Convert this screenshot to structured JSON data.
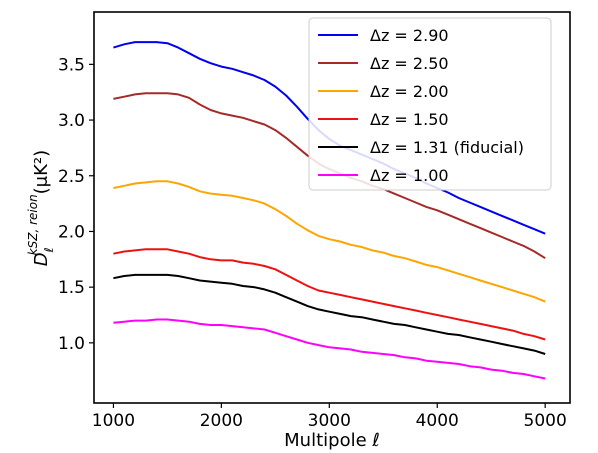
{
  "chart_data": {
    "type": "line",
    "title": "",
    "xlabel": "Multipole ℓ",
    "ylabel_main": "D",
    "ylabel_sub": "ℓ",
    "ylabel_sup": "kSZ, reion",
    "ylabel_unit": "(μK²)",
    "xlim": [
      820,
      5230
    ],
    "ylim": [
      0.46,
      3.97
    ],
    "xticks": [
      "1000",
      "2000",
      "3000",
      "4000",
      "5000"
    ],
    "xtick_values": [
      1000,
      2000,
      3000,
      4000,
      5000
    ],
    "yticks": [
      "1.0",
      "1.5",
      "2.0",
      "2.5",
      "3.0",
      "3.5"
    ],
    "ytick_values": [
      1.0,
      1.5,
      2.0,
      2.5,
      3.0,
      3.5
    ],
    "grid": false,
    "legend_position": "top-right",
    "x": [
      1000,
      1100,
      1200,
      1300,
      1400,
      1500,
      1600,
      1700,
      1800,
      1900,
      2000,
      2100,
      2200,
      2300,
      2400,
      2500,
      2600,
      2700,
      2800,
      2900,
      3000,
      3100,
      3200,
      3300,
      3400,
      3500,
      3600,
      3700,
      3800,
      3900,
      4000,
      4100,
      4200,
      4300,
      4400,
      4500,
      4600,
      4700,
      4800,
      4900,
      5000
    ],
    "series": [
      {
        "name": "Δz = 2.90",
        "color": "#0000ee",
        "values": [
          3.65,
          3.68,
          3.7,
          3.7,
          3.7,
          3.69,
          3.65,
          3.6,
          3.55,
          3.51,
          3.48,
          3.46,
          3.43,
          3.4,
          3.36,
          3.3,
          3.22,
          3.12,
          3.01,
          2.91,
          2.83,
          2.77,
          2.73,
          2.69,
          2.65,
          2.61,
          2.56,
          2.52,
          2.48,
          2.43,
          2.39,
          2.35,
          2.3,
          2.26,
          2.22,
          2.18,
          2.14,
          2.1,
          2.06,
          2.02,
          1.98
        ]
      },
      {
        "name": "Δz = 2.50",
        "color": "#a52a2a",
        "values": [
          3.19,
          3.21,
          3.23,
          3.24,
          3.24,
          3.24,
          3.23,
          3.2,
          3.14,
          3.09,
          3.06,
          3.04,
          3.02,
          2.99,
          2.96,
          2.91,
          2.84,
          2.76,
          2.68,
          2.61,
          2.56,
          2.52,
          2.48,
          2.45,
          2.41,
          2.38,
          2.34,
          2.3,
          2.26,
          2.22,
          2.19,
          2.15,
          2.11,
          2.07,
          2.03,
          1.99,
          1.95,
          1.91,
          1.87,
          1.82,
          1.76
        ]
      },
      {
        "name": "Δz = 2.00",
        "color": "#ffa500",
        "values": [
          2.39,
          2.41,
          2.43,
          2.44,
          2.45,
          2.45,
          2.43,
          2.4,
          2.36,
          2.34,
          2.33,
          2.32,
          2.3,
          2.28,
          2.25,
          2.2,
          2.14,
          2.07,
          2.01,
          1.96,
          1.93,
          1.91,
          1.88,
          1.86,
          1.83,
          1.81,
          1.78,
          1.76,
          1.73,
          1.7,
          1.68,
          1.65,
          1.62,
          1.59,
          1.56,
          1.53,
          1.5,
          1.47,
          1.44,
          1.41,
          1.37
        ]
      },
      {
        "name": "Δz = 1.50",
        "color": "#ee1111",
        "values": [
          1.8,
          1.82,
          1.83,
          1.84,
          1.84,
          1.84,
          1.82,
          1.8,
          1.77,
          1.75,
          1.74,
          1.74,
          1.72,
          1.71,
          1.69,
          1.66,
          1.61,
          1.56,
          1.51,
          1.47,
          1.45,
          1.43,
          1.41,
          1.39,
          1.37,
          1.35,
          1.33,
          1.31,
          1.29,
          1.27,
          1.25,
          1.23,
          1.21,
          1.19,
          1.17,
          1.15,
          1.13,
          1.11,
          1.08,
          1.06,
          1.03
        ]
      },
      {
        "name": "Δz = 1.31 (fiducial)",
        "color": "#000000",
        "values": [
          1.58,
          1.6,
          1.61,
          1.61,
          1.61,
          1.61,
          1.6,
          1.58,
          1.56,
          1.55,
          1.54,
          1.53,
          1.51,
          1.5,
          1.48,
          1.45,
          1.41,
          1.37,
          1.33,
          1.3,
          1.28,
          1.26,
          1.24,
          1.23,
          1.21,
          1.19,
          1.17,
          1.16,
          1.14,
          1.12,
          1.1,
          1.08,
          1.07,
          1.05,
          1.03,
          1.01,
          0.99,
          0.97,
          0.95,
          0.93,
          0.9
        ]
      },
      {
        "name": "Δz = 1.00",
        "color": "#ff00ff",
        "values": [
          1.18,
          1.19,
          1.2,
          1.2,
          1.21,
          1.21,
          1.2,
          1.19,
          1.17,
          1.16,
          1.16,
          1.15,
          1.14,
          1.13,
          1.12,
          1.09,
          1.06,
          1.03,
          1.0,
          0.98,
          0.96,
          0.95,
          0.94,
          0.92,
          0.91,
          0.9,
          0.89,
          0.87,
          0.86,
          0.84,
          0.83,
          0.82,
          0.81,
          0.79,
          0.78,
          0.76,
          0.75,
          0.73,
          0.72,
          0.7,
          0.68
        ]
      }
    ]
  }
}
